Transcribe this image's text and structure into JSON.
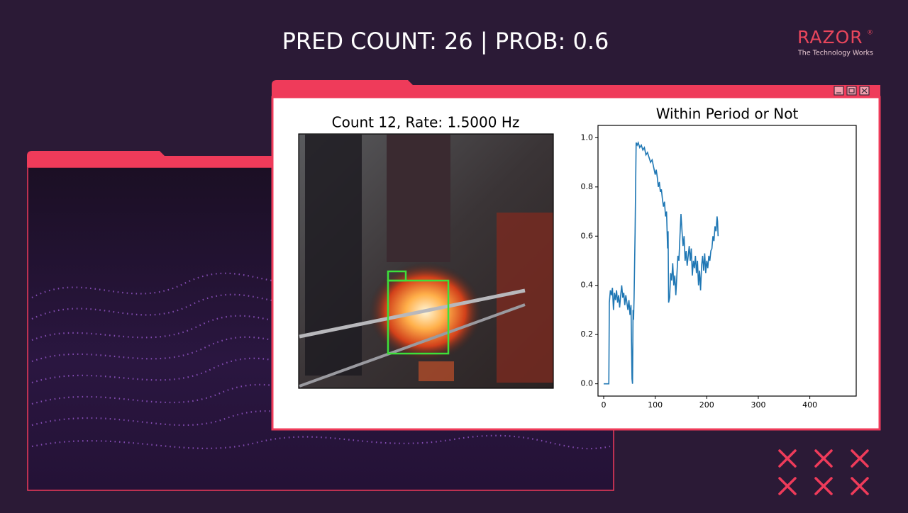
{
  "header": {
    "title": "PRED COUNT: 26 | PROB: 0.6"
  },
  "logo": {
    "brand": "RAZOR",
    "mark": "®",
    "tagline": "The Technology Works"
  },
  "video": {
    "title": "Count 12, Rate: 1.5000 Hz"
  },
  "chart_data": {
    "type": "line",
    "title": "Within Period or Not",
    "color": "#1f77b4",
    "x": [
      0,
      10,
      11,
      13,
      15,
      17,
      19,
      21,
      23,
      25,
      27,
      29,
      31,
      33,
      35,
      37,
      39,
      41,
      43,
      45,
      47,
      49,
      51,
      53,
      55,
      56,
      57,
      58,
      59,
      61,
      63,
      65,
      67,
      70,
      73,
      76,
      79,
      82,
      85,
      88,
      91,
      94,
      97,
      100,
      102,
      104,
      106,
      108,
      110,
      112,
      114,
      116,
      118,
      120,
      122,
      124,
      125,
      126,
      128,
      130,
      132,
      134,
      136,
      138,
      140,
      142,
      144,
      146,
      148,
      150,
      152,
      154,
      156,
      158,
      160,
      162,
      164,
      166,
      168,
      170,
      172,
      174,
      176,
      178,
      180,
      182,
      184,
      186,
      188,
      190,
      192,
      194,
      196,
      198,
      200,
      202,
      204,
      206,
      208,
      210,
      212,
      214,
      216,
      218,
      220,
      221,
      222
    ],
    "values": [
      0,
      0,
      0.33,
      0.38,
      0.36,
      0.39,
      0.3,
      0.37,
      0.34,
      0.38,
      0.33,
      0.36,
      0.31,
      0.36,
      0.4,
      0.35,
      0.37,
      0.32,
      0.36,
      0.33,
      0.3,
      0.34,
      0.28,
      0.32,
      0.02,
      0,
      0.3,
      0.26,
      0.35,
      0.62,
      0.98,
      0.97,
      0.98,
      0.96,
      0.97,
      0.95,
      0.96,
      0.93,
      0.94,
      0.92,
      0.9,
      0.91,
      0.88,
      0.85,
      0.87,
      0.84,
      0.8,
      0.82,
      0.78,
      0.79,
      0.75,
      0.72,
      0.74,
      0.68,
      0.7,
      0.55,
      0.62,
      0.33,
      0.35,
      0.45,
      0.42,
      0.49,
      0.4,
      0.44,
      0.36,
      0.44,
      0.52,
      0.5,
      0.6,
      0.69,
      0.62,
      0.56,
      0.6,
      0.5,
      0.54,
      0.48,
      0.52,
      0.56,
      0.5,
      0.55,
      0.44,
      0.5,
      0.47,
      0.52,
      0.45,
      0.5,
      0.4,
      0.46,
      0.38,
      0.48,
      0.52,
      0.46,
      0.53,
      0.45,
      0.5,
      0.47,
      0.52,
      0.5,
      0.54,
      0.55,
      0.6,
      0.58,
      0.64,
      0.62,
      0.68,
      0.66,
      0.6
    ],
    "xlim": [
      -11,
      490
    ],
    "ylim": [
      -0.05,
      1.05
    ],
    "xticks": [
      0,
      100,
      200,
      300,
      400
    ],
    "yticks": [
      {
        "value": 0,
        "label": "0.0"
      },
      {
        "value": 0.2,
        "label": "0.2"
      },
      {
        "value": 0.4,
        "label": "0.4"
      },
      {
        "value": 0.6,
        "label": "0.6"
      },
      {
        "value": 0.8,
        "label": "0.8"
      },
      {
        "value": 1,
        "label": "1.0"
      }
    ]
  }
}
